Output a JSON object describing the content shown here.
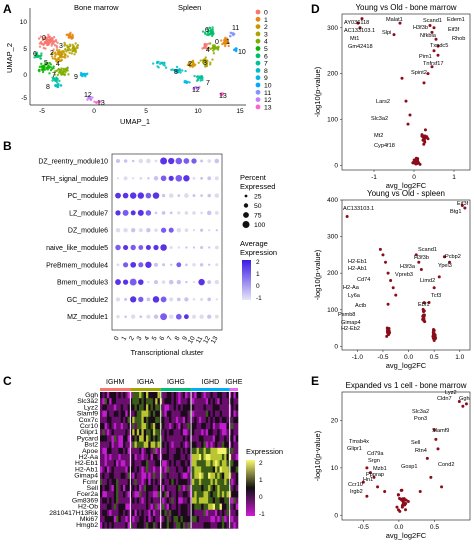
{
  "panels": {
    "A": "A",
    "B": "B",
    "C": "C",
    "D": "D",
    "E": "E"
  },
  "panel_a": {
    "xlabel": "UMAP_1",
    "ylabel": "UMAP_2",
    "subtitles": [
      "Bone marrow",
      "Spleen"
    ],
    "xticks": [
      "-5",
      "0",
      "5",
      "10",
      "15"
    ],
    "yticks": [
      "10",
      "5",
      "0",
      "-5"
    ],
    "legend": [
      "0",
      "1",
      "2",
      "3",
      "4",
      "5",
      "6",
      "7",
      "8",
      "9",
      "10",
      "11",
      "12",
      "13"
    ],
    "colors": [
      "#f8766d",
      "#e68613",
      "#cd9600",
      "#aba300",
      "#7cae00",
      "#0cb702",
      "#00be67",
      "#00c19a",
      "#00bfc4",
      "#00b8e7",
      "#00a9ff",
      "#8494ff",
      "#c77cff",
      "#ff61cc"
    ],
    "left_labels": [
      "0",
      "2",
      "3",
      "5",
      "4",
      "6",
      "7",
      "8",
      "9",
      "12",
      "13"
    ],
    "right_labels": [
      "6",
      "1",
      "11",
      "4",
      "0",
      "10",
      "3",
      "2",
      "8",
      "7",
      "12",
      "13"
    ]
  },
  "chart_data": [
    {
      "type": "scatter",
      "panel": "B",
      "ylabels": [
        "DZ_reentry_module10",
        "TFH_signal_module9",
        "PC_module8",
        "LZ_module7",
        "DZ_module6",
        "naive_like_module5",
        "PreBmem_module4",
        "Bmem_module3",
        "GC_module2",
        "MZ_module1"
      ],
      "xlabels": [
        "0",
        "1",
        "2",
        "3",
        "4",
        "5",
        "6",
        "7",
        "8",
        "9",
        "10",
        "11",
        "12",
        "13"
      ],
      "xlabel": "Transcriptional cluster",
      "size_title": [
        "Percent",
        "Expressed"
      ],
      "size_legend": [
        "25",
        "50",
        "75",
        "100"
      ],
      "color_title": [
        "Average",
        "Expression"
      ],
      "color_legend": [
        "2",
        "1",
        "0",
        "-1"
      ]
    },
    {
      "type": "heatmap",
      "panel": "C",
      "groups": [
        "IGHM",
        "IGHA",
        "IGHG",
        "IGHD",
        "IGHE"
      ],
      "group_colors": [
        "#f8766d",
        "#a3a500",
        "#00bf7d",
        "#00b0f6",
        "#e76bf3"
      ],
      "genes": [
        "Ggh",
        "Slc3a2",
        "Lyz2",
        "Slamf9",
        "Cox7c",
        "Ccr10",
        "Glipr1",
        "Pycard",
        "Bst2",
        "Apoe",
        "H2-Aa",
        "H2-Eb1",
        "H2-Ab1",
        "Gimap4",
        "Fcmr",
        "Sell",
        "Fcer2a",
        "Gm8369",
        "H2-Ob",
        "2810417H13Rik",
        "Mki67",
        "Hmgb2"
      ],
      "legend_title": "Expression",
      "legend_ticks": [
        "2",
        "1",
        "0",
        "-1"
      ]
    },
    {
      "type": "scatter",
      "panel": "D-top",
      "title": "Young vs Old - bone marrow",
      "xlabel": "avg_log2FC",
      "ylabel": "-log10(p-value)",
      "xticks": [
        "-1",
        "0",
        "1"
      ],
      "yticks": [
        "0",
        "100",
        "200",
        "300"
      ],
      "labels": [
        "AY036118",
        "AC133103.1",
        "Mt1",
        "Gm42418",
        "Malat1",
        "Slpi",
        "Scand1",
        "H3f3b",
        "Nfkbia",
        "Edem1",
        "Eif3f",
        "Rhob",
        "Txndc5",
        "Pim1",
        "Tnfrsf17",
        "Spint2",
        "Lars2",
        "Slc3a2",
        "Mt2",
        "Cyp4f18"
      ]
    },
    {
      "type": "scatter",
      "panel": "D-bottom",
      "title": "Young vs Old - spleen",
      "xlabel": "avg_log2FC",
      "ylabel": "-log10(p-value)",
      "xticks": [
        "-1.0",
        "-0.5",
        "0.0",
        "0.5",
        "1.0"
      ],
      "yticks": [
        "0",
        "100",
        "200",
        "300",
        "400"
      ],
      "labels": [
        "AC133103.1",
        "Eif3f",
        "Btg1",
        "H2-Eb1",
        "H2-Ab1",
        "Cd74",
        "H2-Aa",
        "Ly6a",
        "Actb",
        "Psmb8",
        "Gimap4",
        "H2-Eb2",
        "Scand1",
        "H3f3b",
        "H3f3a",
        "Vpreb3",
        "Pcbp2",
        "Ypel3",
        "Limd2",
        "Tcf3",
        "Ebf1"
      ]
    },
    {
      "type": "scatter",
      "panel": "E",
      "title": "Expanded vs 1 cell - bone marrow",
      "xlabel": "avg_log2FC",
      "ylabel": "-log10(p-value)",
      "xticks": [
        "-0.5",
        "0.0",
        "0.5"
      ],
      "yticks": [
        "0",
        "10",
        "20"
      ],
      "labels": [
        "Lyz2",
        "Cldn7",
        "Ggh",
        "Slc3a2",
        "Pon3",
        "Slamf9",
        "Sell",
        "Rtn4",
        "Cond2",
        "Gosp1",
        "Tmsb4x",
        "Glipr1",
        "Cd79a",
        "Srgn",
        "Mzb1",
        "Ppprap",
        "Hn1",
        "Ccr10",
        "Irgb2"
      ]
    }
  ]
}
